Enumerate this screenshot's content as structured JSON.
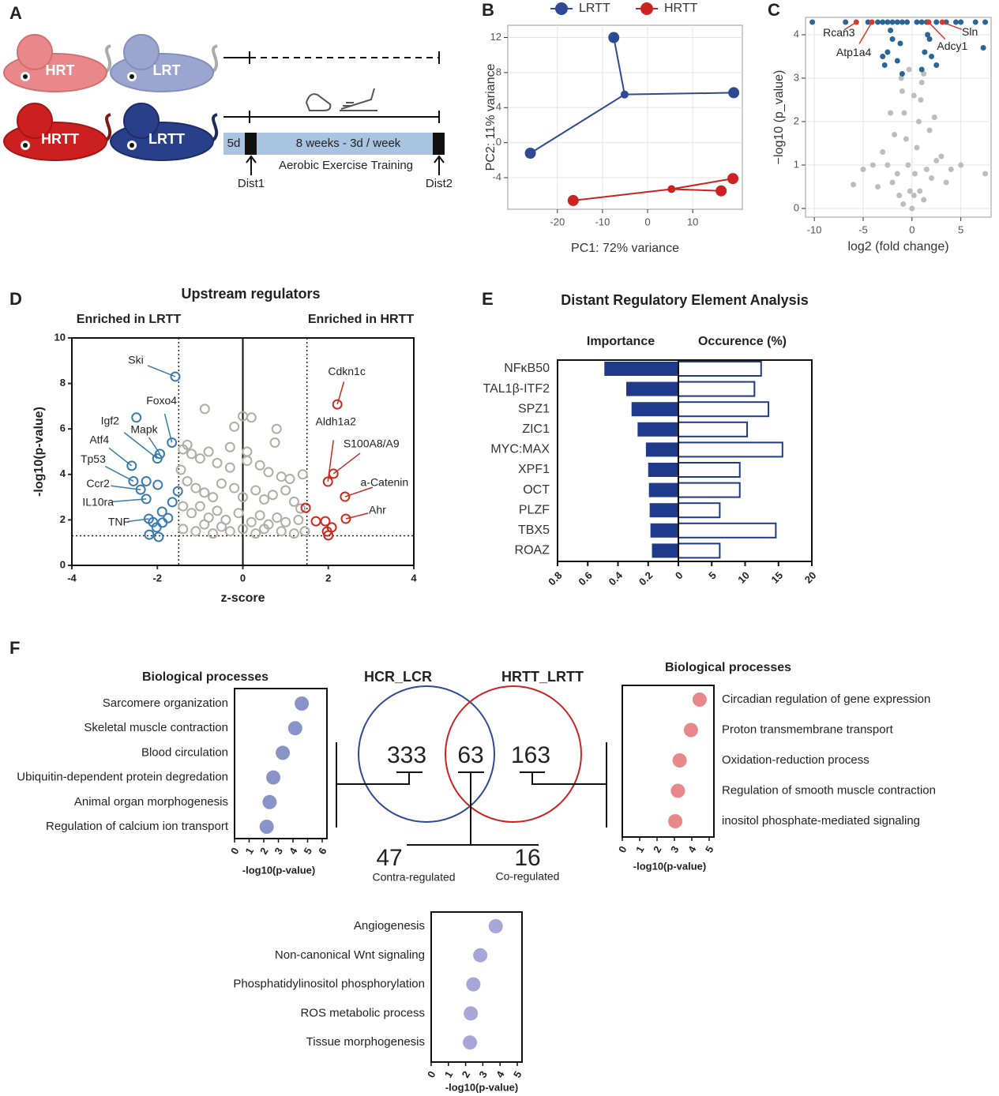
{
  "panel_labels": [
    "A",
    "B",
    "C",
    "D",
    "E",
    "F"
  ],
  "diagram": {
    "groups": [
      "HRT",
      "LRT",
      "HRTT",
      "LRTT"
    ],
    "phases": [
      "5d",
      "8 weeks - 3d / week"
    ],
    "caption": "Aerobic Exercise Training",
    "timepoints": [
      "Dist1",
      "Dist2"
    ]
  },
  "chart_data": [
    {
      "type": "scatter",
      "xlabel": "PC1: 72% variance",
      "ylabel": "PC2: 11% variance",
      "xlim": [
        -31,
        21
      ],
      "ylim": [
        -7.6,
        13.4
      ],
      "xticks": [
        -20,
        -10,
        0,
        10
      ],
      "yticks": [
        -4,
        0,
        4,
        8,
        12
      ],
      "grid": true,
      "legend": "top",
      "series": [
        {
          "name": "LRTT",
          "color": "#2e4a94",
          "x": [
            -7.5,
            -26,
            19.1
          ],
          "values": [
            12,
            -1.2,
            5.7
          ],
          "center": {
            "x": -5.1,
            "y": 5.5
          }
        },
        {
          "name": "HRTT",
          "color": "#cc2222",
          "x": [
            -16.5,
            16.3,
            18.9
          ],
          "values": [
            -6.6,
            -5.5,
            -4.1
          ],
          "center": {
            "x": 5.3,
            "y": -5.3
          }
        }
      ]
    },
    {
      "type": "scatter",
      "xlabel": "log2 (fold change)",
      "ylabel": "−log10 (p_value)",
      "xlim": [
        -10.9,
        8.1
      ],
      "ylim": [
        -0.2,
        4.4
      ],
      "xticks": [
        -10,
        -5,
        0,
        5
      ],
      "yticks": [
        0,
        1,
        2,
        3,
        4
      ],
      "grid": true,
      "series": [
        {
          "color": "#bdbdbd",
          "x": [
            0,
            0.2,
            -0.2,
            0.3,
            -0.4,
            0.5,
            -0.6,
            0.7,
            -0.8,
            0.9,
            -1.0,
            1.0,
            -1.1,
            1.2,
            -0.3,
            0.2,
            -1.5,
            1.5,
            -2,
            2,
            -2.5,
            2.5,
            -3,
            3,
            -1.8,
            1.8,
            -3.5,
            3.5,
            -4,
            4,
            -6,
            7.5,
            -5,
            5,
            -2.2,
            2.3,
            -1.3,
            1.2,
            -0.9,
            0.8
          ],
          "values": [
            0,
            0.3,
            0.4,
            0.8,
            1.0,
            1.4,
            1.6,
            2.0,
            2.2,
            2.5,
            2.7,
            2.9,
            3.0,
            3.1,
            3.2,
            2.6,
            0.8,
            0.9,
            0.6,
            0.7,
            1.0,
            1.1,
            1.3,
            1.2,
            1.7,
            1.8,
            0.5,
            0.6,
            1.0,
            0.9,
            0.55,
            0.8,
            0.9,
            1.0,
            2.2,
            2.1,
            0.3,
            0.2,
            0.1,
            0.4
          ]
        },
        {
          "color": "#2b6496",
          "x": [
            -10.2,
            -6.8,
            -4.5,
            -3.5,
            -3,
            -2.5,
            -2,
            -1.5,
            -1,
            -0.5,
            0.5,
            1,
            1.5,
            2.5,
            3.5,
            4.5,
            5,
            6.5,
            7.5,
            7.3,
            -2.5,
            -2,
            -1.5,
            -1.2,
            -1,
            1,
            1.3,
            1.6,
            2,
            -2.8,
            -3,
            2.5,
            -2.2,
            1.8
          ],
          "values": [
            4.29,
            4.29,
            4.29,
            4.29,
            4.29,
            4.29,
            4.29,
            4.29,
            4.29,
            4.29,
            4.29,
            4.29,
            4.29,
            4.29,
            4.29,
            4.29,
            4.29,
            4.29,
            4.29,
            3.7,
            3.6,
            3.9,
            3.4,
            3.8,
            3.1,
            3.2,
            3.6,
            4.0,
            3.5,
            3.3,
            3.5,
            3.3,
            4.1,
            3.9
          ]
        },
        {
          "color": "#d93a2b",
          "x": [
            -5.7,
            -4.1,
            1.7,
            3.1
          ],
          "values": [
            4.29,
            4.29,
            4.29,
            4.29
          ],
          "labels": [
            "Rcan3",
            "Atp1a4",
            "Adcy1",
            "Sln"
          ]
        }
      ]
    },
    {
      "type": "scatter",
      "title": "Upstream regulators",
      "annotations": [
        "Enriched in LRTT",
        "Enriched in HRTT"
      ],
      "xlabel": "z-score",
      "ylabel": "-log10(p-value)",
      "xlim": [
        -4,
        4
      ],
      "ylim": [
        0,
        10
      ],
      "xticks": [
        -4,
        -2,
        0,
        2,
        4
      ],
      "yticks": [
        0,
        2,
        4,
        6,
        8,
        10
      ],
      "marker": "open",
      "thresholds": {
        "x": [
          -1.5,
          1.5
        ],
        "y": 1.3
      },
      "series": [
        {
          "color": "#b0aca8",
          "x": [
            -0.89,
            0,
            -0.2,
            0.2,
            0.79,
            0.75,
            -1.3,
            -1.4,
            -1.2,
            -1.0,
            -0.8,
            -0.6,
            -0.3,
            0.1,
            0.4,
            0.6,
            0.9,
            1.1,
            1.4,
            -1.45,
            -1.3,
            -1.1,
            -0.9,
            -0.7,
            -0.5,
            -0.2,
            0.0,
            0.3,
            0.5,
            0.7,
            1.0,
            1.2,
            -1.4,
            -1.2,
            -1.0,
            -0.8,
            -0.6,
            -0.4,
            -0.1,
            0.2,
            0.4,
            0.6,
            0.8,
            1.0,
            1.3,
            1.35,
            -1.4,
            -1.1,
            -0.9,
            -0.7,
            -0.5,
            -0.3,
            0.0,
            0.3,
            0.5,
            0.9,
            1.2,
            1.45,
            -0.3,
            0.1
          ],
          "values": [
            6.88,
            6.56,
            6.1,
            6.5,
            6.0,
            5.4,
            5.3,
            5.1,
            4.9,
            4.7,
            5.0,
            4.5,
            4.3,
            4.6,
            4.4,
            4.1,
            3.9,
            3.8,
            4.0,
            4.2,
            3.7,
            3.4,
            3.2,
            3.0,
            3.6,
            3.4,
            3.0,
            3.3,
            2.9,
            3.1,
            3.3,
            2.8,
            2.6,
            2.3,
            2.6,
            2.1,
            2.4,
            2.0,
            2.3,
            1.9,
            2.2,
            1.8,
            2.1,
            1.9,
            2.0,
            2.5,
            1.6,
            1.5,
            1.8,
            1.4,
            1.7,
            1.5,
            1.6,
            1.4,
            1.6,
            1.5,
            1.4,
            1.5,
            5.2,
            5.0
          ]
        },
        {
          "color": "#3a7bae",
          "x": [
            -1.58,
            -1.66,
            -1.94,
            -2.0,
            -2.6,
            -2.56,
            -2.39,
            -2.26,
            -2.2,
            -2.49,
            -2.26,
            -1.99,
            -1.52,
            -1.65,
            -1.89,
            -1.75,
            -2.02,
            -1.88,
            -2.19,
            -1.97,
            -2.1
          ],
          "values": [
            8.3,
            5.4,
            4.9,
            4.7,
            4.38,
            3.7,
            3.33,
            2.92,
            2.05,
            6.5,
            3.7,
            3.54,
            3.26,
            2.78,
            2.36,
            2.08,
            1.67,
            1.88,
            1.35,
            1.25,
            1.9
          ],
          "labels": [
            "Ski",
            "Foxo4",
            "Mapk",
            "Igf2",
            "Atf4",
            "Tp53",
            "Ccr2",
            "IL10ra",
            "TNF",
            null,
            null,
            null,
            null,
            null,
            null,
            null,
            null,
            null,
            null,
            null,
            null
          ]
        },
        {
          "color": "#cc2a1f",
          "x": [
            2.21,
            1.99,
            2.12,
            2.39,
            2.41,
            1.47,
            1.71,
            1.93,
            1.97,
            2.0,
            2.08
          ],
          "values": [
            7.08,
            3.68,
            4.03,
            3.02,
            2.05,
            2.53,
            1.94,
            1.94,
            1.49,
            1.32,
            1.67
          ],
          "labels": [
            "Cdkn1c",
            "Aldh1a2",
            "S100A8/A9",
            "a-Catenin",
            "Ahr",
            null,
            null,
            null,
            null,
            null,
            null
          ]
        }
      ]
    },
    {
      "type": "bar",
      "orientation": "horizontal",
      "title": "Distant Regulatory Element Analysis",
      "categories": [
        "NFκB50",
        "TAL1β-ITF2",
        "SPZ1",
        "ZIC1",
        "MYC:MAX",
        "XPF1",
        "OCT",
        "PLZF",
        "TBX5",
        "ROAZ"
      ],
      "series": [
        {
          "name": "Importance",
          "color": "#1f3a8a",
          "fill": "solid",
          "values": [
            0.49,
            0.345,
            0.31,
            0.27,
            0.215,
            0.2,
            0.195,
            0.19,
            0.185,
            0.175
          ],
          "xlim": [
            0,
            0.8
          ],
          "xticks": [
            0.8,
            0.6,
            0.4,
            0.2
          ]
        },
        {
          "name": "Occurence (%)",
          "color": "#1f3a8a",
          "fill": "outline",
          "values": [
            12.4,
            11.4,
            13.5,
            10.3,
            15.6,
            9.2,
            9.2,
            6.2,
            14.6,
            6.2
          ],
          "xlim": [
            0,
            20
          ],
          "xticks": [
            0,
            5,
            10,
            15,
            20
          ]
        }
      ]
    },
    {
      "type": "dot",
      "title": "Biological processes",
      "xlabel": "-log10(p-value)",
      "categories": [
        "Sarcomere organization",
        "Skeletal muscle contraction",
        "Blood circulation",
        "Ubiquitin-dependent protein degredation",
        "Animal organ morphogenesis",
        "Regulation of calcium ion transport"
      ],
      "values": [
        4.6,
        4.15,
        3.3,
        2.65,
        2.4,
        2.2
      ],
      "color": "#8a93c8",
      "xlim": [
        0,
        6
      ],
      "xticks": [
        0,
        1,
        2,
        3,
        4,
        5,
        6
      ]
    },
    {
      "type": "dot",
      "title": "Biological processes",
      "xlabel": "-log10(p-value)",
      "categories": [
        "Circadian regulation of gene expression",
        "Proton transmembrane transport",
        "Oxidation-reduction process",
        "Regulation of smooth muscle contraction",
        "inositol phosphate-mediated signaling"
      ],
      "values": [
        4.45,
        3.95,
        3.3,
        3.2,
        3.05
      ],
      "color": "#e8888a",
      "xlim": [
        0,
        5
      ],
      "xticks": [
        0,
        1,
        2,
        3,
        4,
        5
      ]
    },
    {
      "type": "dot",
      "xlabel": "-log10(p-value)",
      "categories": [
        "Angiogenesis",
        "Non-canonical Wnt signaling",
        "Phosphatidylinositol phosphorylation",
        "ROS metabolic process",
        "Tissue morphogenesis"
      ],
      "values": [
        3.75,
        2.85,
        2.45,
        2.3,
        2.25
      ],
      "color": "#a8a6d8",
      "xlim": [
        0,
        5
      ],
      "xticks": [
        0,
        1,
        2,
        3,
        4,
        5
      ]
    }
  ],
  "venn": {
    "sets": [
      "HCR_LCR",
      "HRTT_LRTT"
    ],
    "colors": [
      "#2e4a94",
      "#cc2222"
    ],
    "only_a": 333,
    "both": 63,
    "only_b": 163,
    "groups": [
      {
        "count": 47,
        "label": "Contra-regulated"
      },
      {
        "count": 16,
        "label": "Co-regulated"
      }
    ]
  }
}
